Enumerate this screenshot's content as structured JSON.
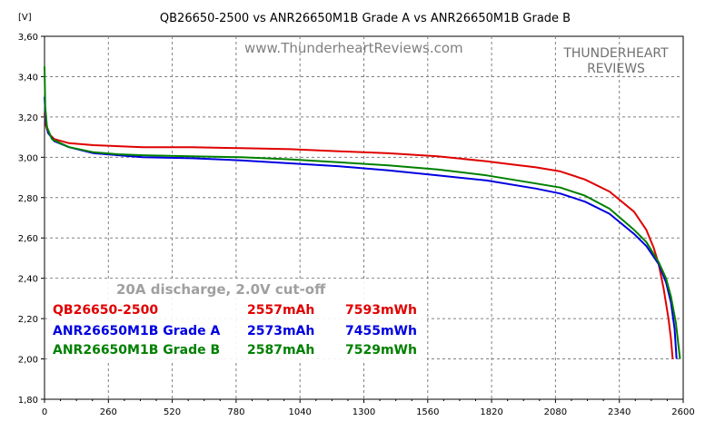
{
  "chart_data": {
    "type": "line",
    "title": "QB26650-2500 vs ANR26650M1B Grade A vs ANR26650M1B Grade B",
    "ylabel": "[V]",
    "xlabel": "",
    "xlim": [
      0,
      2600
    ],
    "ylim": [
      1.8,
      3.6
    ],
    "x_ticks": [
      "0",
      "260",
      "520",
      "780",
      "1040",
      "1300",
      "1560",
      "1820",
      "2080",
      "2340",
      "2600"
    ],
    "y_ticks": [
      "1,80",
      "2,00",
      "2,20",
      "2,40",
      "2,60",
      "2,80",
      "3,00",
      "3,20",
      "3,40",
      "3,60"
    ],
    "grid": true,
    "watermark": "www.ThunderheartReviews.com",
    "brand_line1": "THUNDERHEART",
    "brand_line2": "REVIEWS",
    "annotation": "20A discharge, 2.0V cut-off",
    "legend": [
      {
        "name": "QB26650-2500",
        "capacity": "2557mAh",
        "energy": "7593mWh",
        "color": "#e00000"
      },
      {
        "name": "ANR26650M1B Grade A",
        "capacity": "2573mAh",
        "energy": "7455mWh",
        "color": "#0000e0"
      },
      {
        "name": "ANR26650M1B Grade B",
        "capacity": "2587mAh",
        "energy": "7529mWh",
        "color": "#008000"
      }
    ],
    "series": [
      {
        "name": "QB26650-2500",
        "color": "#e00000",
        "points": [
          [
            0,
            3.22
          ],
          [
            5,
            3.16
          ],
          [
            15,
            3.12
          ],
          [
            40,
            3.09
          ],
          [
            100,
            3.07
          ],
          [
            200,
            3.06
          ],
          [
            300,
            3.055
          ],
          [
            400,
            3.05
          ],
          [
            600,
            3.05
          ],
          [
            800,
            3.045
          ],
          [
            1000,
            3.04
          ],
          [
            1200,
            3.03
          ],
          [
            1400,
            3.02
          ],
          [
            1600,
            3.005
          ],
          [
            1800,
            2.98
          ],
          [
            1900,
            2.965
          ],
          [
            2000,
            2.95
          ],
          [
            2100,
            2.93
          ],
          [
            2200,
            2.89
          ],
          [
            2300,
            2.83
          ],
          [
            2400,
            2.73
          ],
          [
            2450,
            2.64
          ],
          [
            2480,
            2.55
          ],
          [
            2500,
            2.47
          ],
          [
            2520,
            2.35
          ],
          [
            2540,
            2.2
          ],
          [
            2550,
            2.1
          ],
          [
            2557,
            2.0
          ]
        ]
      },
      {
        "name": "ANR26650M1B Grade A",
        "color": "#0000e0",
        "points": [
          [
            0,
            3.3
          ],
          [
            5,
            3.18
          ],
          [
            15,
            3.12
          ],
          [
            40,
            3.08
          ],
          [
            100,
            3.05
          ],
          [
            200,
            3.02
          ],
          [
            300,
            3.01
          ],
          [
            400,
            3.0
          ],
          [
            600,
            2.995
          ],
          [
            800,
            2.985
          ],
          [
            1000,
            2.97
          ],
          [
            1200,
            2.955
          ],
          [
            1400,
            2.935
          ],
          [
            1600,
            2.91
          ],
          [
            1800,
            2.885
          ],
          [
            2000,
            2.845
          ],
          [
            2100,
            2.82
          ],
          [
            2200,
            2.78
          ],
          [
            2300,
            2.72
          ],
          [
            2400,
            2.62
          ],
          [
            2450,
            2.56
          ],
          [
            2500,
            2.47
          ],
          [
            2530,
            2.38
          ],
          [
            2550,
            2.28
          ],
          [
            2565,
            2.15
          ],
          [
            2573,
            2.0
          ]
        ]
      },
      {
        "name": "ANR26650M1B Grade B",
        "color": "#008000",
        "points": [
          [
            0,
            3.45
          ],
          [
            3,
            3.25
          ],
          [
            10,
            3.15
          ],
          [
            30,
            3.09
          ],
          [
            100,
            3.05
          ],
          [
            200,
            3.025
          ],
          [
            300,
            3.015
          ],
          [
            400,
            3.01
          ],
          [
            600,
            3.005
          ],
          [
            800,
            3.0
          ],
          [
            1000,
            2.99
          ],
          [
            1200,
            2.975
          ],
          [
            1400,
            2.96
          ],
          [
            1600,
            2.94
          ],
          [
            1800,
            2.91
          ],
          [
            2000,
            2.87
          ],
          [
            2100,
            2.85
          ],
          [
            2200,
            2.81
          ],
          [
            2300,
            2.745
          ],
          [
            2400,
            2.64
          ],
          [
            2450,
            2.58
          ],
          [
            2500,
            2.48
          ],
          [
            2530,
            2.4
          ],
          [
            2550,
            2.31
          ],
          [
            2570,
            2.18
          ],
          [
            2587,
            2.0
          ]
        ]
      }
    ]
  }
}
